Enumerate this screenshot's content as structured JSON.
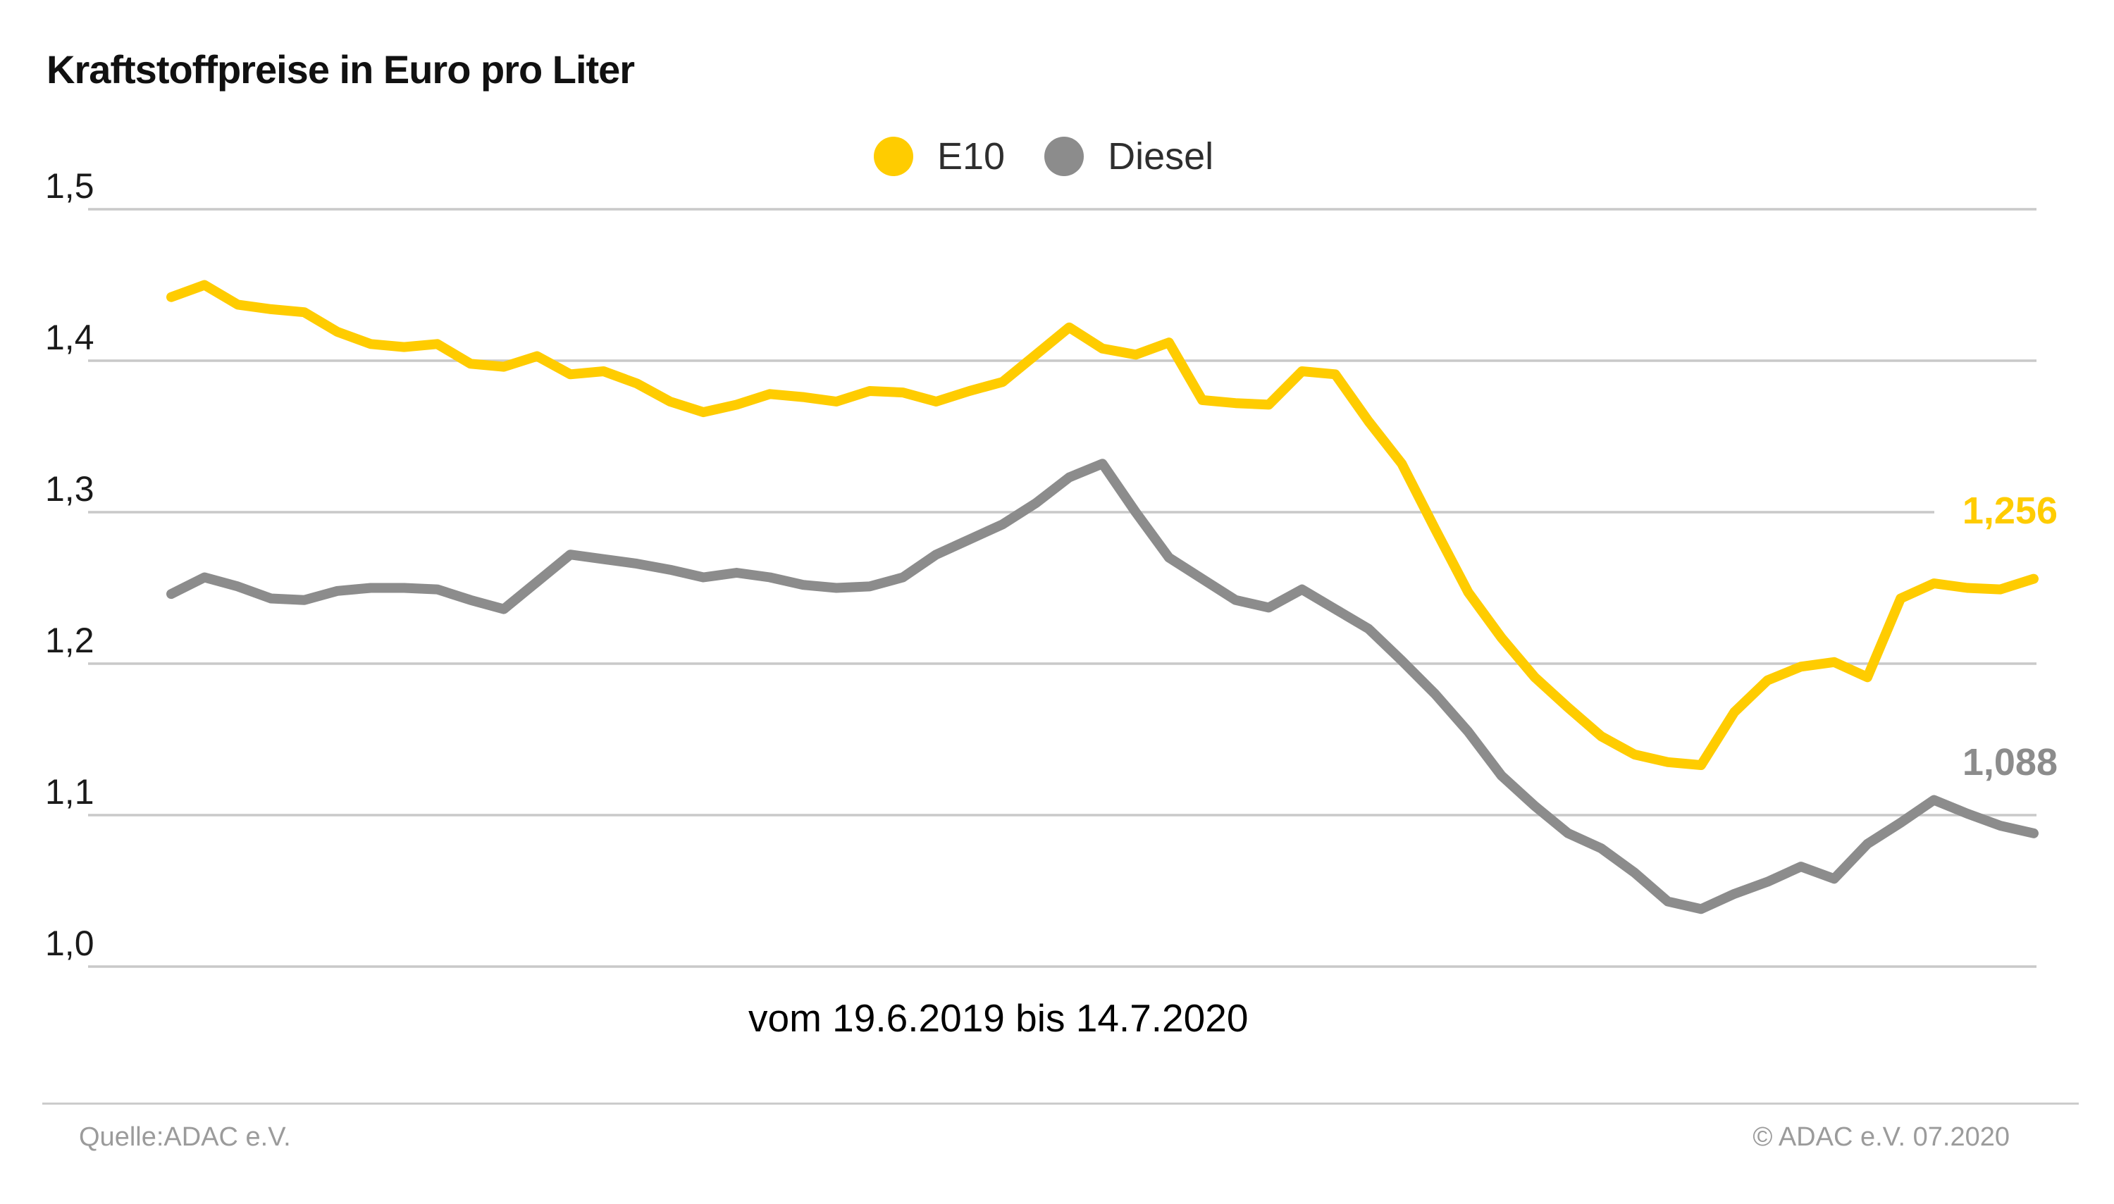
{
  "title": "Kraftstoffpreise in Euro pro Liter",
  "caption": "vom 19.6.2019 bis 14.7.2020",
  "legend": [
    {
      "label": "E10",
      "color": "#FFCC00"
    },
    {
      "label": "Diesel",
      "color": "#8C8C8C"
    }
  ],
  "end_labels": {
    "e10": "1,256",
    "diesel": "1,088"
  },
  "footer": {
    "source": "Quelle:ADAC e.V.",
    "copyright": "© ADAC e.V. 07.2020"
  },
  "colors": {
    "e10": "#FFCC00",
    "diesel": "#8C8C8C",
    "gridline": "#C9C9C9",
    "axis_text": "#1a1a1a",
    "footer_text": "#9b9b9b"
  },
  "chart_data": {
    "type": "line",
    "title": "Kraftstoffpreise in Euro pro Liter",
    "xlabel": "vom 19.6.2019 bis 14.7.2020",
    "ylabel": "Euro pro Liter",
    "x_start_label": "19.6.2019",
    "x_end_label": "14.7.2020",
    "x_unit": "week",
    "ylim": [
      1.0,
      1.5
    ],
    "grid": true,
    "legend_position": "top-center",
    "yticks": [
      {
        "value": 1.5,
        "label": "1,5"
      },
      {
        "value": 1.4,
        "label": "1,4"
      },
      {
        "value": 1.3,
        "label": "1,3"
      },
      {
        "value": 1.2,
        "label": "1,2"
      },
      {
        "value": 1.1,
        "label": "1,1"
      },
      {
        "value": 1.0,
        "label": "1,0"
      }
    ],
    "series": [
      {
        "name": "E10",
        "color": "#FFCC00",
        "end_label": "1,256",
        "end_value": 1.256,
        "values": [
          1.442,
          1.45,
          1.437,
          1.434,
          1.432,
          1.419,
          1.411,
          1.409,
          1.411,
          1.398,
          1.396,
          1.403,
          1.391,
          1.393,
          1.385,
          1.373,
          1.366,
          1.371,
          1.378,
          1.376,
          1.373,
          1.38,
          1.379,
          1.373,
          1.38,
          1.386,
          1.404,
          1.422,
          1.408,
          1.404,
          1.412,
          1.374,
          1.372,
          1.371,
          1.393,
          1.391,
          1.36,
          1.332,
          1.289,
          1.247,
          1.217,
          1.191,
          1.171,
          1.152,
          1.14,
          1.135,
          1.133,
          1.168,
          1.189,
          1.198,
          1.201,
          1.191,
          1.243,
          1.253,
          1.25,
          1.249,
          1.256
        ]
      },
      {
        "name": "Diesel",
        "color": "#8C8C8C",
        "end_label": "1,088",
        "end_value": 1.088,
        "values": [
          1.246,
          1.257,
          1.251,
          1.243,
          1.242,
          1.248,
          1.25,
          1.25,
          1.249,
          1.242,
          1.236,
          1.254,
          1.272,
          1.269,
          1.266,
          1.262,
          1.257,
          1.26,
          1.257,
          1.252,
          1.25,
          1.251,
          1.257,
          1.272,
          1.282,
          1.292,
          1.306,
          1.323,
          1.332,
          1.3,
          1.27,
          1.256,
          1.242,
          1.237,
          1.249,
          1.236,
          1.223,
          1.202,
          1.18,
          1.155,
          1.126,
          1.106,
          1.088,
          1.078,
          1.062,
          1.043,
          1.038,
          1.048,
          1.056,
          1.066,
          1.058,
          1.081,
          1.095,
          1.11,
          1.101,
          1.093,
          1.088
        ]
      }
    ]
  }
}
